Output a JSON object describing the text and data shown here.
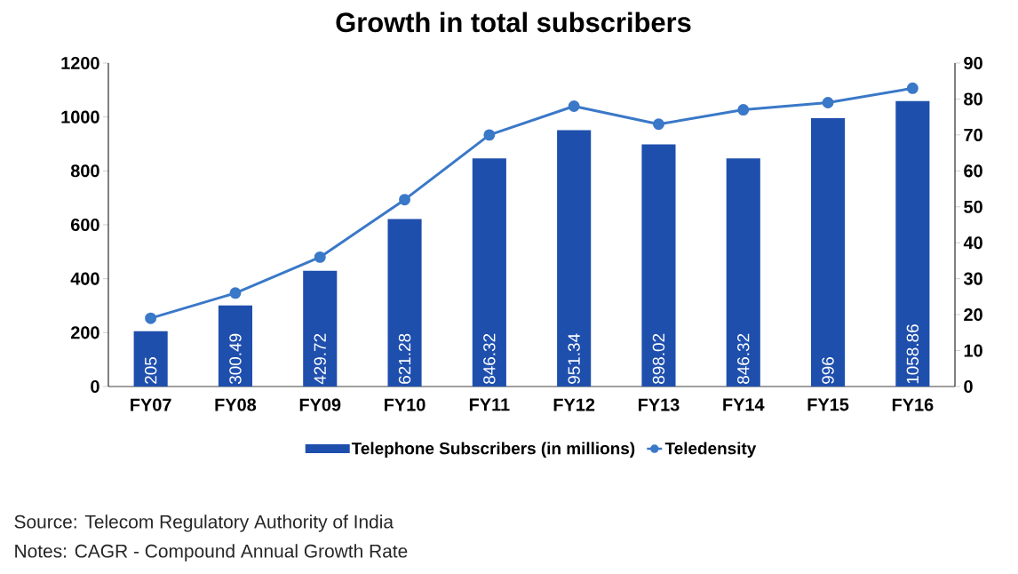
{
  "chart_data": {
    "type": "bar",
    "title": "Growth in total subscribers",
    "categories": [
      "FY07",
      "FY08",
      "FY09",
      "FY10",
      "FY11",
      "FY12",
      "FY13",
      "FY14",
      "FY15",
      "FY16"
    ],
    "series": [
      {
        "name": "Telephone Subscribers (in millions)",
        "color": "#1f4fad",
        "values": [
          205,
          300.49,
          429.72,
          621.28,
          846.32,
          951.34,
          898.02,
          846.32,
          996,
          1058.86
        ],
        "data_labels": true
      },
      {
        "name": "Teledensity",
        "type": "line",
        "axis": "y2",
        "color": "#3a78c8",
        "marker": "circle",
        "values": [
          19,
          26,
          36,
          52,
          70,
          78,
          73,
          77,
          79,
          83
        ]
      }
    ],
    "ylim": [
      0,
      1200
    ],
    "yticks": [
      0,
      200,
      400,
      600,
      800,
      1000,
      1200
    ],
    "y2lim": [
      0,
      90
    ],
    "y2ticks": [
      0,
      10,
      20,
      30,
      40,
      50,
      60,
      70,
      80,
      90
    ],
    "legend": "bottom",
    "grid": false,
    "annotations": [
      "Source: Telecom Regulatory Authority of India",
      "Notes: CAGR - Compound Annual Growth Rate"
    ]
  }
}
